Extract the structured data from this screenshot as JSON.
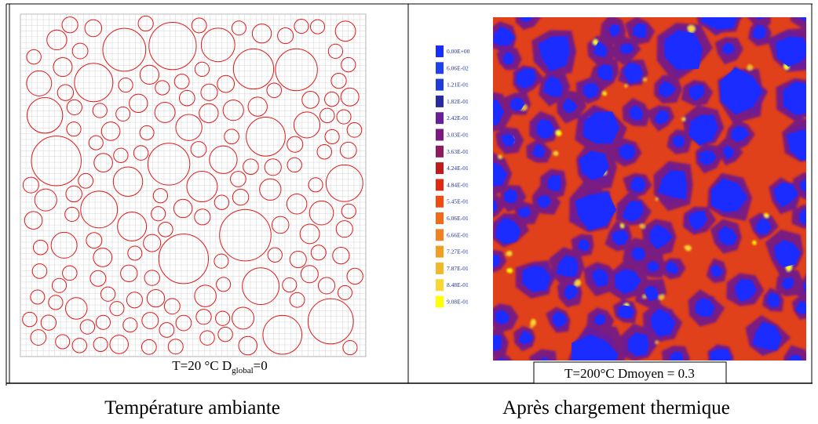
{
  "left": {
    "caption": {
      "main": "T=20 °C D",
      "subscript": "global",
      "tail": "=0"
    },
    "title": "Température ambiante"
  },
  "right": {
    "caption": "T=200°C Dmoyen = 0.3",
    "title": "Après chargement thermique",
    "legend": [
      {
        "label": "0.00E+00",
        "color": "#1a2cff"
      },
      {
        "label": "6.06E-02",
        "color": "#2040ee"
      },
      {
        "label": "1.21E-01",
        "color": "#1f3bd8"
      },
      {
        "label": "1.82E-01",
        "color": "#2a2aa0"
      },
      {
        "label": "2.42E-01",
        "color": "#6a1f9a"
      },
      {
        "label": "3.03E-01",
        "color": "#7a1a80"
      },
      {
        "label": "3.63E-01",
        "color": "#8c1a5c"
      },
      {
        "label": "4.24E-01",
        "color": "#c01a1a"
      },
      {
        "label": "4.84E-01",
        "color": "#e02a10"
      },
      {
        "label": "5.45E-01",
        "color": "#f04a10"
      },
      {
        "label": "6.06E-01",
        "color": "#f06a18"
      },
      {
        "label": "6.66E-01",
        "color": "#f08020"
      },
      {
        "label": "7.27E-01",
        "color": "#f0a020"
      },
      {
        "label": "7.87E-01",
        "color": "#f0b828"
      },
      {
        "label": "8.48E-01",
        "color": "#f8d830"
      },
      {
        "label": "9.08E-01",
        "color": "#ffff00"
      }
    ]
  }
}
